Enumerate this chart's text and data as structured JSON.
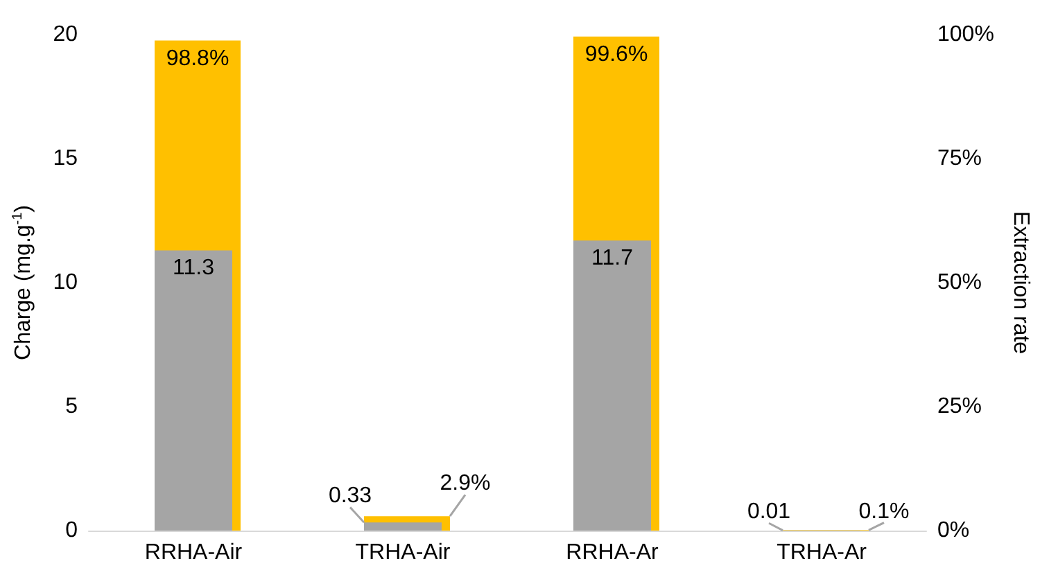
{
  "chart_data": {
    "type": "bar",
    "categories": [
      "RRHA-Air",
      "TRHA-Air",
      "RRHA-Ar",
      "TRHA-Ar"
    ],
    "ylabel": "Charge (mg.g$^{-1}$)",
    "y2label": "Extraction rate",
    "series": [
      {
        "axis": "y2",
        "color": "#ffc000",
        "values": [
          98.8,
          2.9,
          99.6,
          0.1
        ],
        "value_labels": [
          "98.8%",
          "2.9%",
          "99.6%",
          "0.1%"
        ]
      },
      {
        "color": "#a5a5a5",
        "values": [
          11.3,
          0.33,
          11.7,
          0.01
        ],
        "value_labels": [
          "11.3",
          "0.33",
          "11.7",
          "0.01"
        ]
      }
    ],
    "ylim": [
      0,
      20
    ],
    "yticks": [
      0,
      5,
      10,
      15,
      20
    ],
    "y2lim": [
      0,
      100
    ],
    "y2ticks": [
      {
        "value": 0,
        "label": "0%"
      },
      {
        "value": 25,
        "label": "25%"
      },
      {
        "value": 50,
        "label": "50%"
      },
      {
        "value": 75,
        "label": "75%"
      },
      {
        "value": 100,
        "label": "100%"
      }
    ],
    "grid": false
  }
}
